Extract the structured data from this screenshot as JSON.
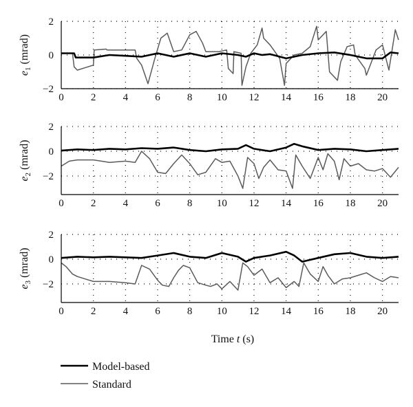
{
  "figure": {
    "xlabel_prefix": "Time ",
    "xlabel_var": "t",
    "xlabel_unit": " (s)"
  },
  "legend": [
    {
      "name": "Model-based",
      "color": "#000000"
    },
    {
      "name": "Standard",
      "color": "#5a5a5a"
    }
  ],
  "chart_data": [
    {
      "type": "line",
      "ylabel_var": "e",
      "ylabel_sub": "1",
      "ylabel_unit": " (mrad)",
      "xlim": [
        0,
        21
      ],
      "ylim": [
        -2,
        2
      ],
      "xticks": [
        0,
        2,
        4,
        6,
        8,
        10,
        12,
        14,
        16,
        18,
        20
      ],
      "yticks": [
        -2,
        0,
        2
      ],
      "grid": "dotted",
      "series": [
        {
          "name": "Model-based",
          "x": [
            0,
            0.8,
            0.9,
            2,
            3,
            4,
            5,
            6,
            6.5,
            7,
            8,
            9,
            10,
            11,
            11.5,
            12,
            12.5,
            13,
            14,
            15,
            16,
            17,
            18,
            19,
            20,
            20.5,
            21
          ],
          "y": [
            0.1,
            0.1,
            -0.15,
            -0.15,
            0.0,
            -0.05,
            -0.1,
            0.1,
            0.0,
            -0.1,
            0.1,
            -0.1,
            0.1,
            0.0,
            -0.1,
            0.1,
            0.0,
            0.05,
            -0.2,
            0.0,
            0.1,
            0.15,
            0.0,
            -0.2,
            -0.2,
            0.15,
            0.1
          ]
        },
        {
          "name": "Standard",
          "x": [
            0,
            0.7,
            0.8,
            1,
            2,
            2.05,
            2.8,
            2.85,
            4.6,
            4.7,
            5.0,
            5.4,
            5.8,
            6.2,
            6.6,
            7,
            7.5,
            8,
            8.4,
            8.8,
            9,
            9.8,
            10.3,
            10.4,
            10.7,
            10.75,
            11.2,
            11.25,
            11.5,
            11.8,
            12.2,
            12.5,
            12.6,
            13.0,
            13.6,
            13.9,
            14.0,
            14.5,
            15.0,
            15.5,
            15.9,
            16.0,
            16.5,
            16.7,
            17.2,
            17.4,
            17.8,
            18.2,
            18.3,
            18.9,
            19.0,
            19.6,
            20.0,
            20.4,
            20.8,
            21
          ],
          "y": [
            0.1,
            0.1,
            -0.7,
            -0.9,
            -0.6,
            0.3,
            0.35,
            0.3,
            0.3,
            -0.2,
            -0.6,
            -1.7,
            -0.3,
            1.0,
            1.3,
            0.2,
            0.3,
            1.2,
            1.4,
            0.7,
            0.2,
            0.2,
            0.3,
            -0.8,
            -1.1,
            0.2,
            0.1,
            -1.8,
            -0.7,
            0.1,
            0.6,
            1.6,
            1.0,
            0.6,
            -0.2,
            -1.8,
            -0.5,
            0.0,
            0.1,
            0.5,
            1.7,
            0.9,
            1.4,
            -1.0,
            -1.5,
            -0.4,
            0.5,
            0.6,
            0.0,
            -0.8,
            -1.2,
            0.3,
            0.6,
            -0.9,
            1.5,
            0.9
          ]
        }
      ]
    },
    {
      "type": "line",
      "ylabel_var": "e",
      "ylabel_sub": "2",
      "ylabel_unit": " (mrad)",
      "xlim": [
        0,
        21
      ],
      "ylim": [
        -3.5,
        2
      ],
      "xticks": [
        0,
        2,
        4,
        6,
        8,
        10,
        12,
        14,
        16,
        18,
        20
      ],
      "yticks": [
        -2,
        0,
        2
      ],
      "grid": "dotted",
      "series": [
        {
          "name": "Model-based",
          "x": [
            0,
            1,
            2,
            3,
            4,
            5,
            6,
            7,
            8,
            9,
            10,
            11,
            11.5,
            12,
            13,
            14,
            14.5,
            15,
            16,
            17,
            18,
            19,
            20,
            21
          ],
          "y": [
            0.05,
            0.15,
            0.1,
            0.2,
            0.15,
            0.25,
            0.2,
            0.3,
            0.1,
            0.0,
            0.15,
            0.2,
            0.5,
            0.2,
            0.0,
            0.3,
            0.6,
            0.4,
            0.1,
            0.2,
            0.15,
            0.0,
            0.1,
            0.2
          ]
        },
        {
          "name": "Standard",
          "x": [
            0,
            0.5,
            1,
            2,
            2.5,
            3,
            4,
            4.6,
            5.0,
            5.5,
            6,
            6.5,
            7,
            7.5,
            8,
            8.5,
            9,
            9.6,
            10,
            10.5,
            11,
            11.3,
            11.6,
            12,
            12.3,
            12.6,
            13,
            13.5,
            14,
            14.4,
            14.6,
            15,
            15.5,
            16,
            16.3,
            16.6,
            17,
            17.3,
            17.6,
            18,
            18.5,
            19,
            19.5,
            20,
            20.5,
            21
          ],
          "y": [
            -1.2,
            -0.8,
            -0.7,
            -0.7,
            -0.8,
            -0.9,
            -0.8,
            -0.9,
            0.0,
            -0.6,
            -1.7,
            -1.8,
            -1.0,
            -0.3,
            -1.0,
            -1.9,
            -1.7,
            -0.6,
            -0.9,
            -0.8,
            -2.0,
            -3.0,
            -0.5,
            -1.0,
            -2.2,
            -1.3,
            -0.7,
            -1.5,
            -1.6,
            -3.0,
            -0.3,
            -1.2,
            -2.2,
            -0.5,
            -1.5,
            -0.2,
            -0.8,
            -2.3,
            -0.6,
            -1.2,
            -1.0,
            -1.5,
            -1.6,
            -1.4,
            -2.1,
            -1.3
          ]
        }
      ]
    },
    {
      "type": "line",
      "ylabel_var": "e",
      "ylabel_sub": "3",
      "ylabel_unit": " (mrad)",
      "xlim": [
        0,
        21
      ],
      "ylim": [
        -3.5,
        2
      ],
      "xticks": [
        0,
        2,
        4,
        6,
        8,
        10,
        12,
        14,
        16,
        18,
        20
      ],
      "yticks": [
        -2,
        0,
        2
      ],
      "grid": "dotted",
      "series": [
        {
          "name": "Model-based",
          "x": [
            0,
            1,
            2,
            3,
            4,
            5,
            6,
            7,
            8,
            9,
            10,
            11,
            11.5,
            12,
            13,
            14,
            14.5,
            15,
            16,
            17,
            18,
            19,
            20,
            21
          ],
          "y": [
            0.1,
            0.2,
            0.15,
            0.2,
            0.15,
            0.1,
            0.3,
            0.5,
            0.2,
            0.1,
            0.5,
            0.2,
            -0.2,
            0.1,
            0.3,
            0.6,
            0.3,
            -0.2,
            0.1,
            0.4,
            0.5,
            0.2,
            0.1,
            0.2
          ]
        },
        {
          "name": "Standard",
          "x": [
            0,
            0.3,
            0.7,
            1,
            1.5,
            2,
            3,
            4,
            4.6,
            5.0,
            5.5,
            6,
            6.3,
            6.7,
            7,
            7.3,
            7.6,
            8,
            8.5,
            9,
            9.3,
            9.7,
            10,
            10.5,
            11,
            11.3,
            11.6,
            12,
            12.5,
            13,
            13.5,
            14,
            14.5,
            14.8,
            15.1,
            15.5,
            16,
            16.3,
            16.6,
            17,
            17.5,
            18,
            18.5,
            19,
            19.5,
            20,
            20.5,
            21
          ],
          "y": [
            -0.3,
            -0.6,
            -1.2,
            -1.4,
            -1.6,
            -1.8,
            -1.8,
            -1.9,
            -2.0,
            -0.5,
            -0.8,
            -1.7,
            -2.1,
            -2.2,
            -1.5,
            -0.9,
            -0.5,
            -0.7,
            -1.9,
            -2.1,
            -2.2,
            -2.0,
            -2.4,
            -1.8,
            -2.5,
            -0.3,
            -0.6,
            -1.3,
            -0.8,
            -1.9,
            -1.5,
            -2.3,
            -1.8,
            -2.2,
            -0.3,
            -1.2,
            -1.8,
            -0.6,
            -1.3,
            -2.0,
            -1.6,
            -1.5,
            -1.3,
            -1.1,
            -1.5,
            -1.8,
            -1.4,
            -1.5
          ]
        }
      ]
    }
  ]
}
